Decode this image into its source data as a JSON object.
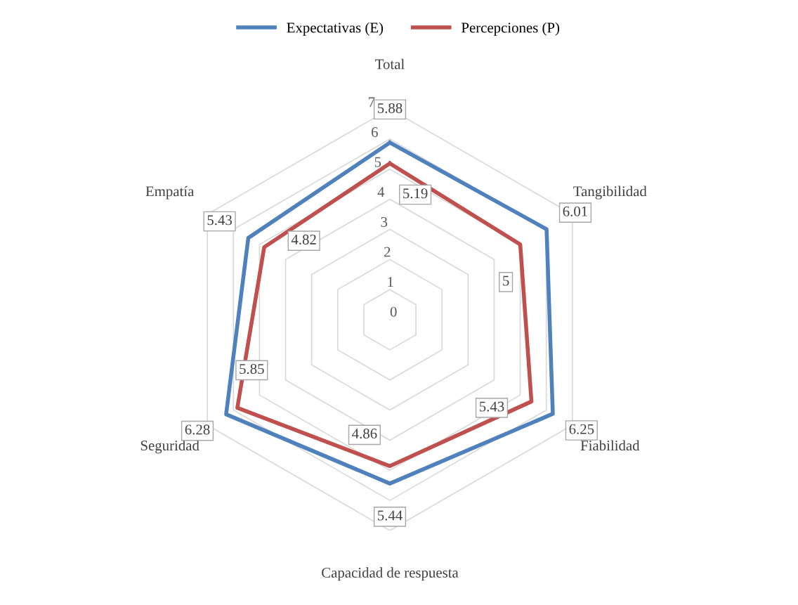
{
  "chart_data": {
    "type": "radar",
    "categories": [
      "Total",
      "Tangibilidad",
      "Fiabilidad",
      "Capacidad de respuesta",
      "Seguridad",
      "Empatía"
    ],
    "series": [
      {
        "name": "Expectativas (E)",
        "color": "#4f81bd",
        "values": [
          5.88,
          6.01,
          6.25,
          5.44,
          6.28,
          5.43
        ]
      },
      {
        "name": "Percepciones (P)",
        "color": "#c0504d",
        "values": [
          5.19,
          5,
          5.43,
          4.86,
          5.85,
          4.82
        ]
      }
    ],
    "ylim": [
      0,
      7
    ],
    "yticks": [
      0,
      1,
      2,
      3,
      4,
      5,
      6,
      7
    ],
    "grid": true,
    "legend": "top",
    "data_labels": true,
    "marker": "none",
    "line_style": "solid"
  }
}
